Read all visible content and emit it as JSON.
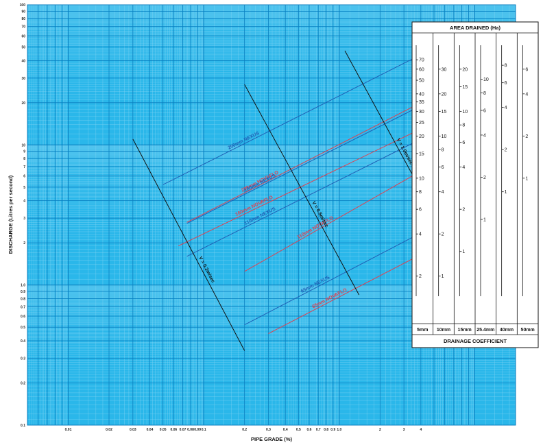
{
  "chart_data": {
    "type": "line",
    "title": "",
    "xlabel": "PIPE GRADE (%)",
    "ylabel": "DISCHARGE (Litres per second)",
    "xscale": "log",
    "yscale": "log",
    "xlim": [
      0.005,
      20
    ],
    "ylim": [
      0.1,
      100
    ],
    "grid": true,
    "x_ticks": [
      {
        "v": 0.01,
        "label": "0.01"
      },
      {
        "v": 0.02,
        "label": "0.02"
      },
      {
        "v": 0.03,
        "label": "0.03"
      },
      {
        "v": 0.04,
        "label": "0.04"
      },
      {
        "v": 0.05,
        "label": "0.05"
      },
      {
        "v": 0.06,
        "label": "0.06"
      },
      {
        "v": 0.07,
        "label": "0.07"
      },
      {
        "v": 0.08,
        "label": "0.08"
      },
      {
        "v": 0.09,
        "label": "0.09"
      },
      {
        "v": 0.1,
        "label": "0.1"
      },
      {
        "v": 0.2,
        "label": "0.2"
      },
      {
        "v": 0.3,
        "label": "0.3"
      },
      {
        "v": 0.4,
        "label": "0.4"
      },
      {
        "v": 0.5,
        "label": "0.5"
      },
      {
        "v": 0.6,
        "label": "0.6"
      },
      {
        "v": 0.7,
        "label": "0.7"
      },
      {
        "v": 0.8,
        "label": "0.8"
      },
      {
        "v": 0.9,
        "label": "0.9"
      },
      {
        "v": 1.0,
        "label": "1.0"
      },
      {
        "v": 2,
        "label": "2"
      },
      {
        "v": 3,
        "label": "3"
      },
      {
        "v": 4,
        "label": "4"
      }
    ],
    "y_ticks": [
      {
        "v": 0.1,
        "label": "0.1"
      },
      {
        "v": 0.2,
        "label": "0.2"
      },
      {
        "v": 0.3,
        "label": "0.3"
      },
      {
        "v": 0.4,
        "label": "0.4"
      },
      {
        "v": 0.5,
        "label": "0.5"
      },
      {
        "v": 0.6,
        "label": "0.6"
      },
      {
        "v": 0.7,
        "label": "0.7"
      },
      {
        "v": 0.8,
        "label": "0.8"
      },
      {
        "v": 0.9,
        "label": "0.9"
      },
      {
        "v": 1.0,
        "label": "1.0"
      },
      {
        "v": 2,
        "label": "2"
      },
      {
        "v": 3,
        "label": "3"
      },
      {
        "v": 4,
        "label": "4"
      },
      {
        "v": 5,
        "label": "5"
      },
      {
        "v": 6,
        "label": "6"
      },
      {
        "v": 7,
        "label": "7"
      },
      {
        "v": 8,
        "label": "8"
      },
      {
        "v": 9,
        "label": "9"
      },
      {
        "v": 10,
        "label": "10"
      },
      {
        "v": 20,
        "label": "20"
      },
      {
        "v": 30,
        "label": "30"
      },
      {
        "v": 40,
        "label": "40"
      },
      {
        "v": 50,
        "label": "50"
      },
      {
        "v": 60,
        "label": "60"
      },
      {
        "v": 70,
        "label": "70"
      },
      {
        "v": 80,
        "label": "80"
      },
      {
        "v": 90,
        "label": "90"
      },
      {
        "v": 100,
        "label": "100"
      }
    ],
    "series": [
      {
        "name": "200mm NEXUS",
        "color": "#1f5fb5",
        "x": [
          0.05,
          4
        ],
        "y": [
          5.2,
          44
        ]
      },
      {
        "name": "200mm NOVAFLO",
        "color": "#e04050",
        "x": [
          0.075,
          4
        ],
        "y": [
          2.8,
          20
        ]
      },
      {
        "name": "160mm NEXUS",
        "color": "#1f5fb5",
        "x": [
          0.075,
          4
        ],
        "y": [
          2.75,
          19
        ]
      },
      {
        "name": "160mm NOVAFLO",
        "color": "#e04050",
        "x": [
          0.065,
          4
        ],
        "y": [
          1.9,
          13
        ]
      },
      {
        "name": "110mm NEXUS",
        "color": "#1f5fb5",
        "x": [
          0.075,
          4
        ],
        "y": [
          1.6,
          11
        ]
      },
      {
        "name": "110mm NOVAFLO",
        "color": "#e04050",
        "x": [
          0.2,
          4
        ],
        "y": [
          1.25,
          6.5
        ]
      },
      {
        "name": "65mm NEXUS",
        "color": "#1f5fb5",
        "x": [
          0.2,
          4
        ],
        "y": [
          0.52,
          2.35
        ]
      },
      {
        "name": "65mm NOVAFLO",
        "color": "#e04050",
        "x": [
          0.3,
          4
        ],
        "y": [
          0.45,
          1.65
        ]
      }
    ],
    "velocity_lines": [
      {
        "name": "V = 0.2m/sec",
        "x": [
          0.03,
          0.2
        ],
        "y": [
          11,
          0.34
        ]
      },
      {
        "name": "V = 0.5m/sec",
        "x": [
          0.2,
          1.4
        ],
        "y": [
          27,
          0.85
        ]
      },
      {
        "name": "V = 1.0m/sec",
        "x": [
          1.1,
          5
        ],
        "y": [
          47,
          3.2
        ]
      }
    ],
    "area_panel": {
      "title": "AREA DRAINED (Ha)",
      "footer": "DRAINAGE COEFFICIENT",
      "columns": [
        {
          "label": "5mm",
          "ticks": [
            2,
            4,
            6,
            8,
            10,
            15,
            20,
            25,
            30,
            35,
            40,
            50,
            60,
            70
          ]
        },
        {
          "label": "10mm",
          "ticks": [
            1,
            2,
            4,
            6,
            8,
            10,
            15,
            20,
            30
          ]
        },
        {
          "label": "15mm",
          "ticks": [
            1,
            2,
            4,
            6,
            8,
            10,
            15,
            20
          ]
        },
        {
          "label": "25.4mm",
          "ticks": [
            1,
            2,
            4,
            6,
            8,
            10
          ]
        },
        {
          "label": "40mm",
          "ticks": [
            1,
            2,
            4,
            6,
            8
          ]
        },
        {
          "label": "50mm",
          "ticks": [
            1,
            2,
            4,
            6
          ]
        }
      ]
    }
  }
}
